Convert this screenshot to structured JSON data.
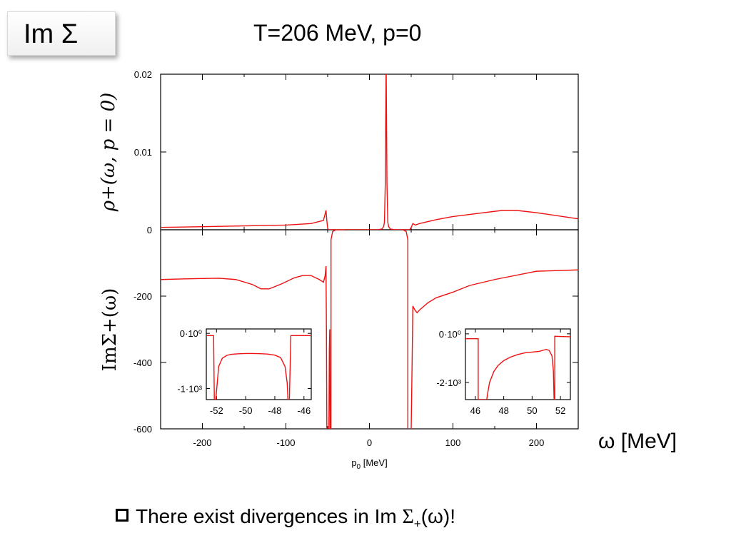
{
  "badge": {
    "label": "Im Σ"
  },
  "slide": {
    "title": "T=206 MeV,  p=0",
    "omega_axis_label": "ω [MeV]",
    "bullet": {
      "prefix": "There exist divergences in Im ",
      "sigma": "Σ",
      "sub": "+",
      "suffix": "(ω)!"
    }
  },
  "chart_data": [
    {
      "type": "line",
      "panel": "top",
      "ylabel": "ρ+(ω, p = 0)",
      "xlim": [
        -250,
        250
      ],
      "ylim": [
        0,
        0.02
      ],
      "yticks": [
        0,
        0.01,
        0.02
      ],
      "ytick_labels": [
        "0",
        "0.01",
        "0.02"
      ],
      "color": "#ee1111",
      "series": [
        {
          "x": [
            -250,
            -200,
            -150,
            -100,
            -70,
            -55,
            -52,
            -51,
            -50,
            -49,
            -48,
            -45,
            -40,
            -30,
            0,
            10,
            15,
            17,
            18,
            19,
            20,
            21,
            22,
            23,
            25,
            30,
            40,
            46,
            48,
            50,
            52,
            55,
            60,
            80,
            100,
            130,
            160,
            175,
            200,
            250
          ],
          "y": [
            0.0003,
            0.0004,
            0.0005,
            0.0006,
            0.0008,
            0.0012,
            0.0025,
            0.0012,
            0.0002,
            0.0,
            0.0,
            0.0,
            0.0,
            0.0,
            0.0,
            0.0,
            0.0001,
            0.0004,
            0.001,
            0.006,
            0.022,
            0.006,
            0.001,
            0.0004,
            0.0001,
            0.0,
            0.0,
            0.0,
            0.0,
            0.0003,
            0.0008,
            0.0006,
            0.0008,
            0.0013,
            0.0017,
            0.0021,
            0.0025,
            0.0025,
            0.0022,
            0.0014
          ]
        }
      ]
    },
    {
      "type": "line",
      "panel": "bottom",
      "ylabel": "ImΣ+(ω)",
      "xlabel": "p0 [MeV]",
      "xlim": [
        -250,
        250
      ],
      "ylim": [
        -600,
        0
      ],
      "yticks": [
        -600,
        -400,
        -200
      ],
      "ytick_labels": [
        "-600",
        "-400",
        "-200"
      ],
      "xticks": [
        -200,
        -100,
        0,
        100,
        200
      ],
      "xtick_labels": [
        "-200",
        "-100",
        "0",
        "100",
        "200"
      ],
      "color": "#ee1111",
      "series": [
        {
          "name": "left",
          "x": [
            -250,
            -220,
            -200,
            -180,
            -160,
            -140,
            -130,
            -120,
            -105,
            -90,
            -80,
            -70,
            -60,
            -55,
            -53,
            -52
          ],
          "y": [
            -150,
            -148,
            -147,
            -146,
            -150,
            -165,
            -178,
            -178,
            -163,
            -145,
            -138,
            -138,
            -150,
            -158,
            -138,
            -110
          ]
        },
        {
          "name": "divergence-1",
          "x": [
            -52,
            -51.5,
            -51,
            -50.5
          ],
          "y": [
            -110,
            -300,
            -600,
            -600
          ]
        },
        {
          "name": "divergence-2",
          "x": [
            -48.5,
            -48,
            -47.5,
            -47
          ],
          "y": [
            -600,
            -360,
            -300,
            -600
          ]
        },
        {
          "name": "plateau-left",
          "x": [
            -46,
            -46,
            -44,
            -40,
            -30
          ],
          "y": [
            -600,
            -30,
            -5,
            0,
            0
          ]
        },
        {
          "name": "plateau-right",
          "x": [
            40,
            44,
            46,
            46
          ],
          "y": [
            0,
            -5,
            -30,
            -600
          ]
        },
        {
          "name": "divergence-3",
          "x": [
            48,
            48.5
          ],
          "y": [
            -600,
            -600
          ]
        },
        {
          "name": "right",
          "x": [
            50,
            51,
            52,
            54,
            57,
            60,
            70,
            80,
            100,
            120,
            150,
            200,
            250
          ],
          "y": [
            -600,
            -420,
            -230,
            -240,
            -250,
            -242,
            -220,
            -205,
            -188,
            -168,
            -150,
            -125,
            -121
          ]
        }
      ],
      "insets": [
        {
          "xlim": [
            -52.7,
            -45.5
          ],
          "xticks": [
            -52,
            -50,
            -48,
            -46
          ],
          "xtick_labels": [
            "-52",
            "-50",
            "-48",
            "-46"
          ],
          "ylim": [
            -1200,
            80
          ],
          "yticks": [
            0,
            -1000
          ],
          "ytick_labels": [
            "0·10⁰",
            "-1·10³"
          ],
          "x": [
            -52.7,
            -52.2,
            -52.15,
            -52.05,
            -51.95,
            -51.85,
            -51.6,
            -51.3,
            -51.0,
            -50.5,
            -50.0,
            -49.5,
            -49.0,
            -48.5,
            -48.0,
            -47.6,
            -47.3,
            -47.15,
            -47.1,
            -47.05,
            -47.0,
            -46.9,
            -46.5,
            -46.0,
            -45.5
          ],
          "y": [
            -40,
            -40,
            -1200,
            -1200,
            -900,
            -600,
            -450,
            -400,
            -380,
            -370,
            -365,
            -365,
            -368,
            -375,
            -395,
            -440,
            -600,
            -900,
            -1200,
            -1200,
            -1200,
            -40,
            -40,
            -40,
            -40
          ]
        },
        {
          "xlim": [
            45.3,
            52.7
          ],
          "xticks": [
            46,
            48,
            50,
            52
          ],
          "xtick_labels": [
            "46",
            "48",
            "50",
            "52"
          ],
          "ylim": [
            -2700,
            200
          ],
          "yticks": [
            0,
            -2000
          ],
          "ytick_labels": [
            "0·10⁰",
            "-2·10³"
          ],
          "x": [
            45.3,
            46.2,
            46.2,
            46.8,
            46.85,
            47.0,
            47.3,
            47.6,
            48.0,
            48.5,
            49.0,
            49.5,
            50.0,
            50.5,
            51.0,
            51.2,
            51.4,
            51.5,
            51.55,
            51.6,
            51.6,
            52.0,
            52.7
          ],
          "y": [
            -200,
            -200,
            -2700,
            -2700,
            -2500,
            -2000,
            -1550,
            -1300,
            -1100,
            -950,
            -850,
            -780,
            -750,
            -720,
            -640,
            -680,
            -900,
            -1500,
            -2700,
            -2700,
            -100,
            -110,
            -120
          ]
        }
      ]
    }
  ]
}
